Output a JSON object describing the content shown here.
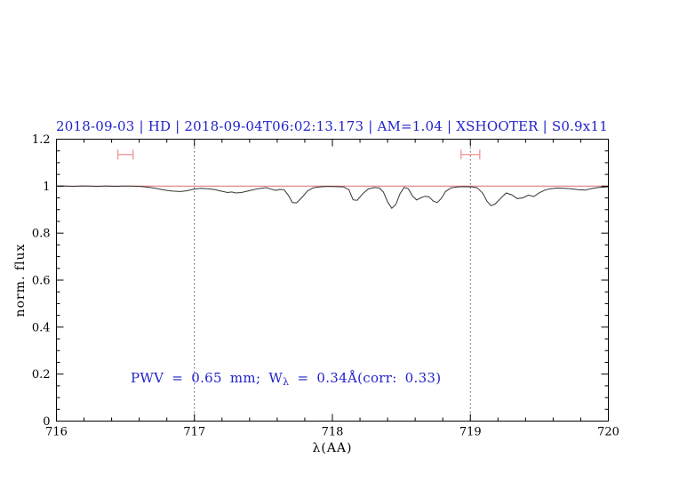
{
  "page": {
    "background": "#ffffff"
  },
  "title": {
    "text": "2018-09-03 | HD | 2018-09-04T06:02:13.173 | AM=1.04 | XSHOOTER | S0.9x11",
    "color": "#2222cc"
  },
  "annotation": {
    "prefix": "PWV = 0.65 mm; W",
    "subscript": "λ",
    "suffix": " = 0.34Å(corr: 0.33)",
    "color": "#2222cc"
  },
  "chart_data": {
    "type": "line",
    "title": "2018-09-03 | HD | 2018-09-04T06:02:13.173 | AM=1.04 | XSHOOTER | S0.9x11",
    "xlabel": "λ(AA)",
    "ylabel": "norm. flux",
    "xlim": [
      716,
      720
    ],
    "ylim": [
      0,
      1.2
    ],
    "x_major_ticks": [
      716,
      717,
      718,
      719,
      720
    ],
    "x_tick_labels": [
      "716",
      "717",
      "718",
      "719",
      "720"
    ],
    "x_minor_step": 0.2,
    "y_major_ticks": [
      0,
      0.2,
      0.4,
      0.6,
      0.8,
      1,
      1.2
    ],
    "y_tick_labels": [
      "0",
      "0.2",
      "0.4",
      "0.6",
      "0.8",
      "1",
      "1.2"
    ],
    "y_minor_step": 0.05,
    "grid": "off",
    "legend": "none",
    "vlines": [
      717,
      719
    ],
    "colors": {
      "spectrum": "#333333",
      "continuum": "#dd6e6e",
      "marker": "#f0a0a0",
      "vline": "#555555",
      "axis": "#000000"
    },
    "annotation_text": "PWV = 0.65 mm; Wλ = 0.34Å(corr: 0.33)",
    "series": [
      {
        "name": "continuum-fit",
        "color": "#dd6e6e",
        "points": [
          [
            716.0,
            1.0
          ],
          [
            720.0,
            1.0
          ]
        ]
      },
      {
        "name": "observed-spectrum",
        "color": "#333333",
        "points": [
          [
            716.0,
            1.0
          ],
          [
            716.06,
            1.001
          ],
          [
            716.12,
            0.999
          ],
          [
            716.18,
            1.001
          ],
          [
            716.24,
            1.0
          ],
          [
            716.3,
            0.999
          ],
          [
            716.36,
            1.001
          ],
          [
            716.42,
            0.999
          ],
          [
            716.48,
            1.0
          ],
          [
            716.54,
            1.0
          ],
          [
            716.6,
            0.999
          ],
          [
            716.66,
            0.996
          ],
          [
            716.72,
            0.991
          ],
          [
            716.78,
            0.984
          ],
          [
            716.84,
            0.979
          ],
          [
            716.9,
            0.977
          ],
          [
            716.95,
            0.981
          ],
          [
            717.0,
            0.988
          ],
          [
            717.05,
            0.991
          ],
          [
            717.1,
            0.989
          ],
          [
            717.15,
            0.985
          ],
          [
            717.2,
            0.978
          ],
          [
            717.24,
            0.973
          ],
          [
            717.27,
            0.975
          ],
          [
            717.3,
            0.971
          ],
          [
            717.34,
            0.973
          ],
          [
            717.4,
            0.981
          ],
          [
            717.46,
            0.989
          ],
          [
            717.52,
            0.994
          ],
          [
            717.56,
            0.987
          ],
          [
            717.59,
            0.982
          ],
          [
            717.62,
            0.986
          ],
          [
            717.65,
            0.985
          ],
          [
            717.68,
            0.962
          ],
          [
            717.71,
            0.93
          ],
          [
            717.74,
            0.929
          ],
          [
            717.78,
            0.952
          ],
          [
            717.82,
            0.98
          ],
          [
            717.86,
            0.993
          ],
          [
            717.91,
            0.997
          ],
          [
            717.97,
            0.999
          ],
          [
            718.03,
            0.998
          ],
          [
            718.08,
            0.997
          ],
          [
            718.12,
            0.985
          ],
          [
            718.15,
            0.942
          ],
          [
            718.18,
            0.94
          ],
          [
            718.22,
            0.968
          ],
          [
            718.26,
            0.988
          ],
          [
            718.3,
            0.994
          ],
          [
            718.34,
            0.992
          ],
          [
            718.37,
            0.975
          ],
          [
            718.4,
            0.933
          ],
          [
            718.43,
            0.906
          ],
          [
            718.46,
            0.922
          ],
          [
            718.49,
            0.968
          ],
          [
            718.52,
            0.995
          ],
          [
            718.55,
            0.989
          ],
          [
            718.58,
            0.959
          ],
          [
            718.61,
            0.941
          ],
          [
            718.64,
            0.95
          ],
          [
            718.67,
            0.957
          ],
          [
            718.7,
            0.955
          ],
          [
            718.73,
            0.937
          ],
          [
            718.76,
            0.93
          ],
          [
            718.79,
            0.948
          ],
          [
            718.82,
            0.977
          ],
          [
            718.86,
            0.993
          ],
          [
            718.91,
            0.997
          ],
          [
            718.96,
            0.998
          ],
          [
            719.01,
            0.997
          ],
          [
            719.05,
            0.993
          ],
          [
            719.09,
            0.97
          ],
          [
            719.12,
            0.936
          ],
          [
            719.15,
            0.917
          ],
          [
            719.18,
            0.924
          ],
          [
            719.22,
            0.949
          ],
          [
            719.26,
            0.971
          ],
          [
            719.3,
            0.963
          ],
          [
            719.34,
            0.947
          ],
          [
            719.38,
            0.95
          ],
          [
            719.42,
            0.962
          ],
          [
            719.46,
            0.956
          ],
          [
            719.5,
            0.972
          ],
          [
            719.54,
            0.983
          ],
          [
            719.58,
            0.989
          ],
          [
            719.63,
            0.992
          ],
          [
            719.68,
            0.991
          ],
          [
            719.73,
            0.989
          ],
          [
            719.78,
            0.985
          ],
          [
            719.83,
            0.983
          ],
          [
            719.88,
            0.99
          ],
          [
            719.93,
            0.995
          ],
          [
            720.0,
            0.997
          ]
        ]
      }
    ],
    "markers": [
      {
        "type": "errorbar-x",
        "x": 716.5,
        "xerr": 0.055,
        "y": 1.135
      },
      {
        "type": "errorbar-x",
        "x": 719.0,
        "xerr": 0.068,
        "y": 1.135
      }
    ]
  }
}
